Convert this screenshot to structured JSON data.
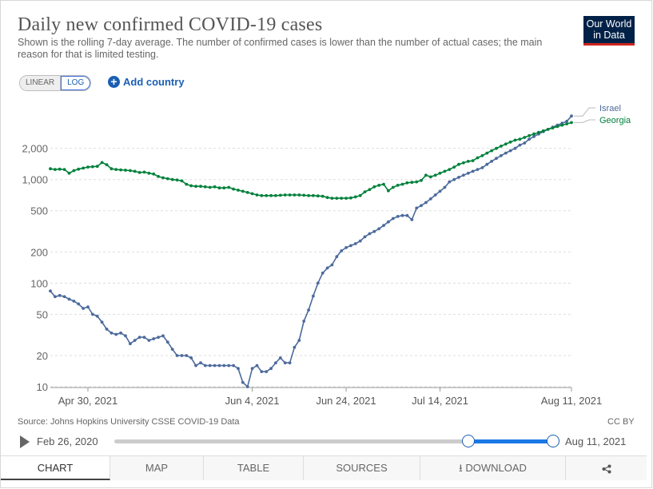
{
  "header": {
    "title": "Daily new confirmed COVID-19 cases",
    "subtitle": "Shown is the rolling 7-day average. The number of confirmed cases is lower than the number of actual cases; the main reason for that is limited testing.",
    "logo_line1": "Our World",
    "logo_line2": "in Data"
  },
  "controls": {
    "linear_label": "LINEAR",
    "log_label": "LOG",
    "add_country_label": "Add country"
  },
  "footer": {
    "source": "Source: Johns Hopkins University CSSE COVID-19 Data",
    "license": "CC BY"
  },
  "timeline": {
    "start_date": "Feb 26, 2020",
    "end_date": "Aug 11, 2021"
  },
  "tabs": {
    "chart": "CHART",
    "map": "MAP",
    "table": "TABLE",
    "sources": "SOURCES",
    "download": "DOWNLOAD"
  },
  "colors": {
    "israel": "#4c6a9c",
    "georgia": "#00813b",
    "accent": "#1a5fb4",
    "logo_bg": "#002147",
    "logo_bar": "#ce261e"
  },
  "chart_data": {
    "type": "line",
    "title": "Daily new confirmed COVID-19 cases",
    "yscale": "log",
    "ylim": [
      10,
      4500
    ],
    "yticks": [
      10,
      20,
      50,
      100,
      200,
      500,
      1000,
      2000
    ],
    "ytick_labels": [
      "10",
      "20",
      "50",
      "100",
      "200",
      "500",
      "1,000",
      "2,000"
    ],
    "x_start": "Apr 22, 2021",
    "x_end": "Aug 11, 2021",
    "x_days": 111,
    "xticks": [
      8,
      43,
      63,
      83,
      111
    ],
    "xtick_labels": [
      "Apr 30, 2021",
      "Jun 4, 2021",
      "Jun 24, 2021",
      "Jul 14, 2021",
      "Aug 11, 2021"
    ],
    "legend_position": "right",
    "series": [
      {
        "name": "Israel",
        "color": "#4c6a9c",
        "values": [
          84,
          74,
          76,
          74,
          70,
          67,
          63,
          57,
          59,
          50,
          48,
          42,
          36,
          33,
          32,
          33,
          31,
          26,
          28,
          30,
          30,
          28,
          29,
          30,
          31,
          27,
          23,
          20,
          20,
          20,
          19,
          16,
          17,
          16,
          16,
          16,
          16,
          16,
          16,
          16,
          15,
          11,
          10,
          15,
          16,
          14,
          14,
          15,
          17,
          19,
          17,
          17,
          24,
          28,
          43,
          55,
          75,
          100,
          125,
          140,
          150,
          180,
          205,
          220,
          230,
          240,
          255,
          280,
          300,
          315,
          335,
          360,
          390,
          420,
          440,
          450,
          450,
          410,
          530,
          560,
          600,
          650,
          710,
          770,
          840,
          950,
          1000,
          1050,
          1100,
          1150,
          1200,
          1250,
          1300,
          1400,
          1500,
          1600,
          1700,
          1800,
          1900,
          2000,
          2150,
          2250,
          2450,
          2600,
          2750,
          2900,
          3050,
          3200,
          3350,
          3500,
          3650,
          4100
        ]
      },
      {
        "name": "Georgia",
        "color": "#00813b",
        "values": [
          1270,
          1250,
          1260,
          1250,
          1150,
          1220,
          1260,
          1290,
          1320,
          1330,
          1340,
          1460,
          1390,
          1270,
          1250,
          1240,
          1230,
          1220,
          1200,
          1170,
          1180,
          1150,
          1130,
          1070,
          1040,
          1020,
          1000,
          990,
          970,
          900,
          870,
          860,
          860,
          850,
          840,
          850,
          830,
          830,
          840,
          810,
          790,
          770,
          750,
          730,
          710,
          700,
          700,
          700,
          700,
          705,
          710,
          710,
          710,
          710,
          705,
          700,
          700,
          695,
          690,
          670,
          660,
          660,
          660,
          660,
          665,
          680,
          700,
          760,
          800,
          850,
          880,
          900,
          780,
          840,
          880,
          900,
          930,
          940,
          950,
          980,
          1100,
          1060,
          1100,
          1150,
          1200,
          1250,
          1320,
          1400,
          1450,
          1500,
          1520,
          1620,
          1700,
          1800,
          1900,
          2000,
          2100,
          2200,
          2300,
          2400,
          2450,
          2550,
          2650,
          2750,
          2850,
          2950,
          3050,
          3150,
          3250,
          3350,
          3450,
          3550
        ]
      }
    ]
  }
}
